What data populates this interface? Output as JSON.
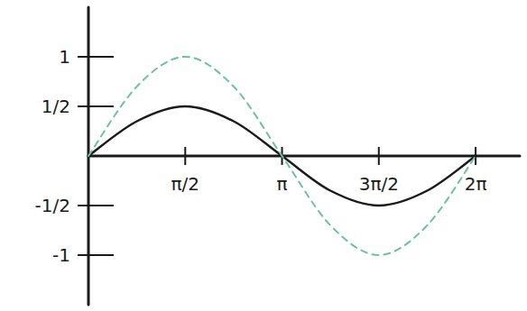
{
  "chart_data": {
    "type": "line",
    "x": [
      0,
      0.7854,
      1.5708,
      2.3562,
      3.1416,
      3.927,
      4.7124,
      5.4978,
      6.2832
    ],
    "series": [
      {
        "color": "#1a1a1a",
        "line_style": "solid",
        "values": [
          0,
          0.35,
          0.5,
          0.35,
          0,
          -0.35,
          -0.5,
          -0.35,
          0
        ]
      },
      {
        "color": "#6cc0a8",
        "line_style": "dashed",
        "values": [
          0,
          0.7,
          1,
          0.7,
          0,
          -0.7,
          -1,
          -0.7,
          0
        ]
      }
    ],
    "xlim": [
      0,
      7
    ],
    "ylim": [
      -1.5,
      1.5
    ],
    "xticks": [
      {
        "value": 1.5708,
        "label": "π/2"
      },
      {
        "value": 3.1416,
        "label": "π"
      },
      {
        "value": 4.7124,
        "label": "3π/2"
      },
      {
        "value": 6.2832,
        "label": "2π"
      }
    ],
    "yticks": [
      1,
      {
        "value": 0.5,
        "label": "1/2"
      },
      {
        "value": -0.5,
        "label": "-1/2"
      },
      -1
    ],
    "grid": false
  }
}
